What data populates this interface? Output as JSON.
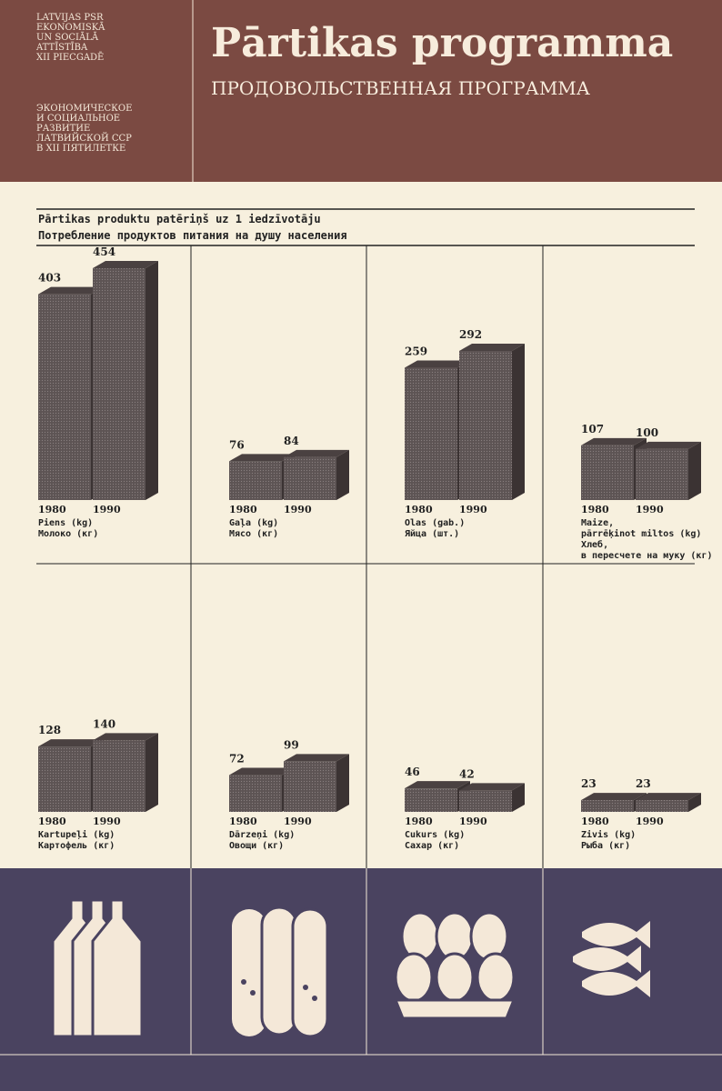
{
  "header": {
    "left_lv": [
      "LATVIJAS PSR",
      "EKONOMISKĀ",
      "UN SOCIĀLĀ",
      "ATTĪSTĪBA",
      "XII PIECGADĒ"
    ],
    "left_ru": [
      "ЭКОНОМИЧЕСКОЕ",
      "И СОЦИАЛЬНОЕ",
      "РАЗВИТИЕ",
      "ЛАТВИЙСКОЙ ССР",
      "В XII ПЯТИЛЕТКЕ"
    ],
    "title": "Pārtikas programma",
    "subtitle": "ПРОДОВОЛЬСТВЕННАЯ ПРОГРАММА"
  },
  "section": {
    "title_lv": "Pārtikas produktu patēriņš uz 1 iedzīvotāju",
    "title_ru": "Потребление продуктов питания на душу населения"
  },
  "chart_data": [
    {
      "type": "bar",
      "categories": [
        "1980",
        "1990"
      ],
      "values": [
        403,
        454
      ],
      "labels": [
        "Piens (kg)",
        "Молоко (кг)"
      ]
    },
    {
      "type": "bar",
      "categories": [
        "1980",
        "1990"
      ],
      "values": [
        76,
        84
      ],
      "labels": [
        "Gaļa (kg)",
        "Мясо (кг)"
      ]
    },
    {
      "type": "bar",
      "categories": [
        "1980",
        "1990"
      ],
      "values": [
        259,
        292
      ],
      "labels": [
        "Olas (gab.)",
        "Яйца (шт.)"
      ]
    },
    {
      "type": "bar",
      "categories": [
        "1980",
        "1990"
      ],
      "values": [
        107,
        100
      ],
      "labels": [
        "Maize,",
        "pārrēķinot miltos (kg)",
        "Хлеб,",
        "в пересчете на муку (кг)"
      ]
    },
    {
      "type": "bar",
      "categories": [
        "1980",
        "1990"
      ],
      "values": [
        128,
        140
      ],
      "labels": [
        "Kartupeļi (kg)",
        "Картофель (кг)"
      ]
    },
    {
      "type": "bar",
      "categories": [
        "1980",
        "1990"
      ],
      "values": [
        72,
        99
      ],
      "labels": [
        "Dārzeņi (kg)",
        "Овощи (кг)"
      ]
    },
    {
      "type": "bar",
      "categories": [
        "1980",
        "1990"
      ],
      "values": [
        46,
        42
      ],
      "labels": [
        "Cukurs (kg)",
        "Сахар (кг)"
      ]
    },
    {
      "type": "bar",
      "categories": [
        "1980",
        "1990"
      ],
      "values": [
        23,
        23
      ],
      "labels": [
        "Zivis (kg)",
        "Рыба (кг)"
      ]
    }
  ]
}
